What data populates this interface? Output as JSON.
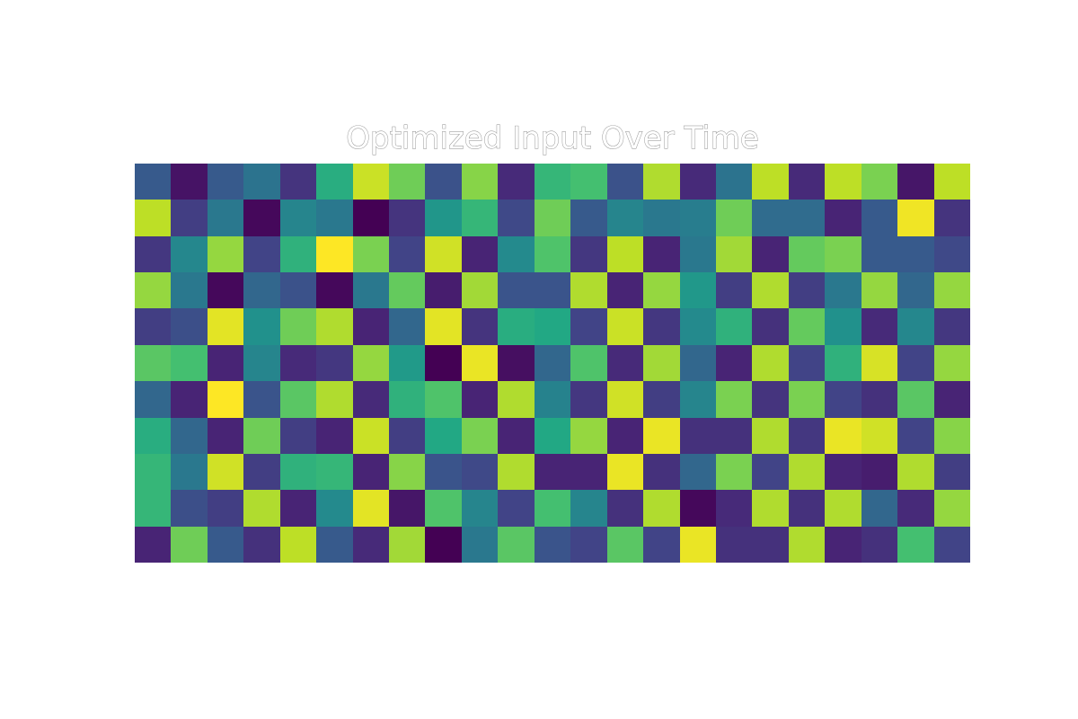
{
  "chart_data": {
    "type": "heatmap",
    "title": "Optimized Input Over Time",
    "xlabel": "",
    "ylabel": "",
    "axes_visible": false,
    "grid": false,
    "colorbar": false,
    "colormap": "viridis",
    "value_range": [
      0,
      1
    ],
    "n_rows": 11,
    "n_cols": 23,
    "values": [
      [
        0.28,
        0.05,
        0.28,
        0.38,
        0.15,
        0.62,
        0.92,
        0.78,
        0.25,
        0.82,
        0.12,
        0.66,
        0.7,
        0.25,
        0.88,
        0.12,
        0.38,
        0.9,
        0.12,
        0.9,
        0.8,
        0.06,
        0.9
      ],
      [
        0.9,
        0.18,
        0.4,
        0.02,
        0.45,
        0.4,
        0.0,
        0.15,
        0.52,
        0.66,
        0.22,
        0.78,
        0.28,
        0.45,
        0.4,
        0.42,
        0.78,
        0.35,
        0.35,
        0.1,
        0.28,
        0.98,
        0.15
      ],
      [
        0.16,
        0.46,
        0.84,
        0.2,
        0.64,
        1.0,
        0.8,
        0.2,
        0.93,
        0.1,
        0.47,
        0.72,
        0.16,
        0.9,
        0.1,
        0.4,
        0.86,
        0.1,
        0.76,
        0.8,
        0.28,
        0.28,
        0.22
      ],
      [
        0.84,
        0.4,
        0.02,
        0.33,
        0.25,
        0.02,
        0.4,
        0.76,
        0.08,
        0.86,
        0.26,
        0.26,
        0.88,
        0.1,
        0.84,
        0.53,
        0.18,
        0.88,
        0.18,
        0.4,
        0.84,
        0.33,
        0.84
      ],
      [
        0.18,
        0.24,
        0.96,
        0.5,
        0.78,
        0.88,
        0.1,
        0.33,
        0.96,
        0.15,
        0.62,
        0.6,
        0.2,
        0.92,
        0.16,
        0.47,
        0.64,
        0.14,
        0.76,
        0.5,
        0.12,
        0.46,
        0.16
      ],
      [
        0.74,
        0.7,
        0.1,
        0.45,
        0.12,
        0.16,
        0.84,
        0.54,
        0.0,
        0.97,
        0.04,
        0.33,
        0.72,
        0.12,
        0.86,
        0.33,
        0.1,
        0.88,
        0.2,
        0.64,
        0.94,
        0.2,
        0.84
      ],
      [
        0.33,
        0.1,
        1.0,
        0.26,
        0.74,
        0.88,
        0.12,
        0.64,
        0.72,
        0.1,
        0.88,
        0.44,
        0.16,
        0.93,
        0.18,
        0.45,
        0.8,
        0.15,
        0.8,
        0.2,
        0.14,
        0.74,
        0.1
      ],
      [
        0.62,
        0.33,
        0.1,
        0.78,
        0.18,
        0.1,
        0.92,
        0.18,
        0.6,
        0.8,
        0.1,
        0.6,
        0.84,
        0.1,
        0.97,
        0.14,
        0.14,
        0.88,
        0.16,
        0.97,
        0.93,
        0.2,
        0.82
      ],
      [
        0.66,
        0.4,
        0.93,
        0.18,
        0.64,
        0.66,
        0.1,
        0.82,
        0.26,
        0.22,
        0.88,
        0.1,
        0.1,
        0.97,
        0.14,
        0.33,
        0.8,
        0.2,
        0.88,
        0.1,
        0.08,
        0.88,
        0.18
      ],
      [
        0.66,
        0.24,
        0.18,
        0.88,
        0.1,
        0.47,
        0.96,
        0.06,
        0.72,
        0.45,
        0.2,
        0.7,
        0.45,
        0.14,
        0.88,
        0.02,
        0.12,
        0.88,
        0.14,
        0.88,
        0.33,
        0.12,
        0.84
      ],
      [
        0.1,
        0.78,
        0.28,
        0.14,
        0.9,
        0.28,
        0.12,
        0.86,
        0.0,
        0.4,
        0.74,
        0.26,
        0.2,
        0.74,
        0.2,
        0.97,
        0.14,
        0.14,
        0.88,
        0.1,
        0.14,
        0.7,
        0.2
      ]
    ]
  }
}
